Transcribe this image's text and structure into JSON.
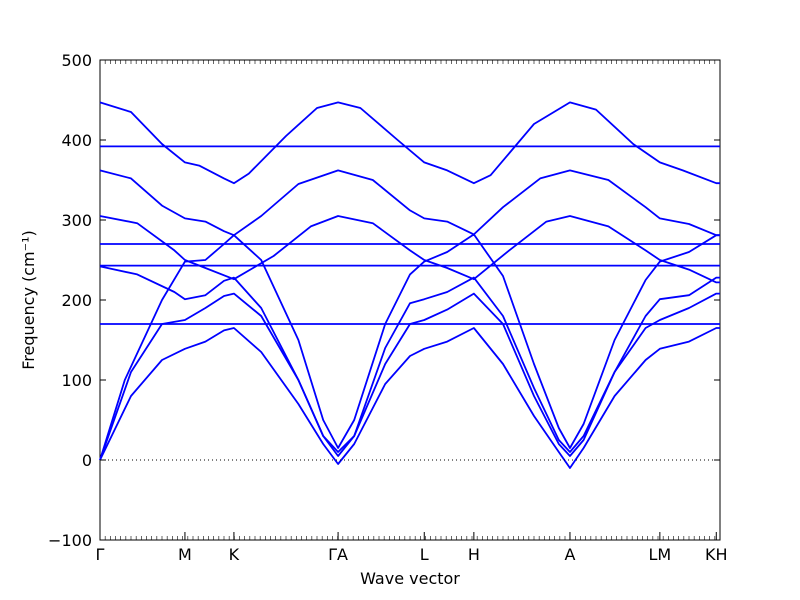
{
  "chart_data": {
    "type": "line",
    "title": "",
    "xlabel": "Wave vector",
    "ylabel": "Frequency (cm⁻¹)",
    "ylim": [
      -100,
      500
    ],
    "yticks": [
      -100,
      0,
      100,
      200,
      300,
      400,
      500
    ],
    "grid": false,
    "line_color": "#0000ff",
    "zero_line_style": "dotted",
    "high_symmetry_points": [
      {
        "label": "Γ",
        "x": 0
      },
      {
        "label": "M",
        "x": 0.137
      },
      {
        "label": "K",
        "x": 0.216
      },
      {
        "label": "ΓA",
        "x": 0.384
      },
      {
        "label": "L",
        "x": 0.523
      },
      {
        "label": "H",
        "x": 0.603
      },
      {
        "label": "A",
        "x": 0.758
      },
      {
        "label": "LM",
        "x": 0.903
      },
      {
        "label": "KH",
        "x": 0.994
      }
    ],
    "xlim": [
      0,
      1
    ],
    "series": [
      {
        "values": [
          [
            0,
            447
          ],
          [
            0.05,
            435
          ],
          [
            0.1,
            395
          ],
          [
            0.137,
            372
          ],
          [
            0.16,
            368
          ],
          [
            0.2,
            352
          ],
          [
            0.216,
            346
          ],
          [
            0.24,
            358
          ],
          [
            0.3,
            405
          ],
          [
            0.35,
            440
          ],
          [
            0.384,
            447
          ],
          [
            0.42,
            440
          ],
          [
            0.48,
            400
          ],
          [
            0.523,
            372
          ],
          [
            0.56,
            362
          ],
          [
            0.603,
            346
          ],
          [
            0.63,
            356
          ],
          [
            0.7,
            420
          ],
          [
            0.758,
            447
          ],
          [
            0.8,
            438
          ],
          [
            0.86,
            395
          ],
          [
            0.903,
            372
          ],
          [
            0.94,
            362
          ],
          [
            0.994,
            346
          ],
          [
            1,
            346
          ]
        ]
      },
      {
        "values": [
          [
            0,
            392
          ],
          [
            0.1,
            392
          ],
          [
            0.2,
            392
          ],
          [
            0.3,
            392
          ],
          [
            0.384,
            392
          ],
          [
            0.5,
            392
          ],
          [
            0.6,
            392
          ],
          [
            0.7,
            392
          ],
          [
            0.8,
            392
          ],
          [
            0.903,
            392
          ],
          [
            1,
            392
          ]
        ]
      },
      {
        "values": [
          [
            0,
            362
          ],
          [
            0.05,
            352
          ],
          [
            0.1,
            318
          ],
          [
            0.137,
            302
          ],
          [
            0.17,
            298
          ],
          [
            0.2,
            286
          ],
          [
            0.216,
            281
          ],
          [
            0.26,
            305
          ],
          [
            0.32,
            345
          ],
          [
            0.384,
            362
          ],
          [
            0.44,
            350
          ],
          [
            0.5,
            312
          ],
          [
            0.523,
            302
          ],
          [
            0.56,
            298
          ],
          [
            0.603,
            282
          ],
          [
            0.65,
            316
          ],
          [
            0.71,
            352
          ],
          [
            0.758,
            362
          ],
          [
            0.82,
            350
          ],
          [
            0.88,
            316
          ],
          [
            0.903,
            302
          ],
          [
            0.95,
            295
          ],
          [
            0.994,
            281
          ],
          [
            1,
            281
          ]
        ]
      },
      {
        "values": [
          [
            0,
            305
          ],
          [
            0.06,
            296
          ],
          [
            0.12,
            262
          ],
          [
            0.137,
            250
          ],
          [
            0.17,
            240
          ],
          [
            0.216,
            226
          ],
          [
            0.28,
            255
          ],
          [
            0.34,
            292
          ],
          [
            0.384,
            305
          ],
          [
            0.44,
            296
          ],
          [
            0.5,
            262
          ],
          [
            0.523,
            250
          ],
          [
            0.56,
            240
          ],
          [
            0.603,
            226
          ],
          [
            0.66,
            262
          ],
          [
            0.72,
            298
          ],
          [
            0.758,
            305
          ],
          [
            0.82,
            292
          ],
          [
            0.88,
            262
          ],
          [
            0.903,
            250
          ],
          [
            0.95,
            238
          ],
          [
            0.994,
            222
          ],
          [
            1,
            222
          ]
        ]
      },
      {
        "values": [
          [
            0,
            270
          ],
          [
            0.1,
            270
          ],
          [
            0.2,
            270
          ],
          [
            0.3,
            270
          ],
          [
            0.384,
            270
          ],
          [
            0.5,
            270
          ],
          [
            0.6,
            270
          ],
          [
            0.7,
            270
          ],
          [
            0.8,
            270
          ],
          [
            0.903,
            270
          ],
          [
            1,
            270
          ]
        ]
      },
      {
        "values": [
          [
            0,
            243
          ],
          [
            0.1,
            243
          ],
          [
            0.2,
            243
          ],
          [
            0.3,
            243
          ],
          [
            0.384,
            243
          ],
          [
            0.5,
            243
          ],
          [
            0.6,
            243
          ],
          [
            0.7,
            243
          ],
          [
            0.8,
            243
          ],
          [
            0.903,
            243
          ],
          [
            1,
            243
          ]
        ]
      },
      {
        "values": [
          [
            0,
            242
          ],
          [
            0.06,
            232
          ],
          [
            0.12,
            210
          ],
          [
            0.137,
            201
          ],
          [
            0.17,
            206
          ],
          [
            0.2,
            224
          ],
          [
            0.216,
            228
          ],
          [
            0.26,
            190
          ],
          [
            0.32,
            100
          ],
          [
            0.36,
            30
          ],
          [
            0.384,
            10
          ],
          [
            0.41,
            30
          ],
          [
            0.46,
            140
          ],
          [
            0.5,
            196
          ],
          [
            0.523,
            201
          ],
          [
            0.56,
            210
          ],
          [
            0.603,
            228
          ],
          [
            0.65,
            180
          ],
          [
            0.7,
            90
          ],
          [
            0.74,
            25
          ],
          [
            0.758,
            10
          ],
          [
            0.78,
            30
          ],
          [
            0.83,
            110
          ],
          [
            0.88,
            180
          ],
          [
            0.903,
            201
          ],
          [
            0.95,
            206
          ],
          [
            0.994,
            228
          ],
          [
            1,
            228
          ]
        ]
      },
      {
        "values": [
          [
            0,
            170
          ],
          [
            0.1,
            170
          ],
          [
            0.2,
            170
          ],
          [
            0.3,
            170
          ],
          [
            0.384,
            170
          ],
          [
            0.5,
            170
          ],
          [
            0.6,
            170
          ],
          [
            0.7,
            170
          ],
          [
            0.8,
            170
          ],
          [
            0.903,
            170
          ],
          [
            1,
            170
          ]
        ]
      },
      {
        "values": [
          [
            0,
            0
          ],
          [
            0.04,
            100
          ],
          [
            0.1,
            200
          ],
          [
            0.137,
            248
          ],
          [
            0.17,
            250
          ],
          [
            0.2,
            270
          ],
          [
            0.216,
            281
          ],
          [
            0.26,
            250
          ],
          [
            0.32,
            150
          ],
          [
            0.36,
            50
          ],
          [
            0.384,
            15
          ],
          [
            0.41,
            50
          ],
          [
            0.46,
            170
          ],
          [
            0.5,
            232
          ],
          [
            0.523,
            248
          ],
          [
            0.56,
            260
          ],
          [
            0.603,
            282
          ],
          [
            0.65,
            230
          ],
          [
            0.7,
            120
          ],
          [
            0.74,
            40
          ],
          [
            0.758,
            15
          ],
          [
            0.78,
            45
          ],
          [
            0.83,
            150
          ],
          [
            0.88,
            225
          ],
          [
            0.903,
            248
          ],
          [
            0.95,
            260
          ],
          [
            0.994,
            281
          ],
          [
            1,
            281
          ]
        ]
      },
      {
        "values": [
          [
            0,
            0
          ],
          [
            0.05,
            110
          ],
          [
            0.1,
            170
          ],
          [
            0.137,
            175
          ],
          [
            0.17,
            190
          ],
          [
            0.2,
            205
          ],
          [
            0.216,
            208
          ],
          [
            0.26,
            180
          ],
          [
            0.32,
            100
          ],
          [
            0.36,
            30
          ],
          [
            0.384,
            5
          ],
          [
            0.41,
            30
          ],
          [
            0.46,
            120
          ],
          [
            0.5,
            170
          ],
          [
            0.523,
            175
          ],
          [
            0.56,
            188
          ],
          [
            0.603,
            208
          ],
          [
            0.65,
            170
          ],
          [
            0.7,
            80
          ],
          [
            0.74,
            20
          ],
          [
            0.758,
            5
          ],
          [
            0.78,
            25
          ],
          [
            0.83,
            110
          ],
          [
            0.88,
            165
          ],
          [
            0.903,
            175
          ],
          [
            0.95,
            190
          ],
          [
            0.994,
            208
          ],
          [
            1,
            208
          ]
        ]
      },
      {
        "values": [
          [
            0,
            0
          ],
          [
            0.05,
            80
          ],
          [
            0.1,
            125
          ],
          [
            0.137,
            139
          ],
          [
            0.17,
            148
          ],
          [
            0.2,
            162
          ],
          [
            0.216,
            165
          ],
          [
            0.26,
            135
          ],
          [
            0.32,
            70
          ],
          [
            0.36,
            20
          ],
          [
            0.384,
            -5
          ],
          [
            0.41,
            20
          ],
          [
            0.46,
            95
          ],
          [
            0.5,
            130
          ],
          [
            0.523,
            139
          ],
          [
            0.56,
            148
          ],
          [
            0.603,
            165
          ],
          [
            0.65,
            120
          ],
          [
            0.7,
            55
          ],
          [
            0.74,
            10
          ],
          [
            0.758,
            -10
          ],
          [
            0.78,
            15
          ],
          [
            0.83,
            80
          ],
          [
            0.88,
            125
          ],
          [
            0.903,
            139
          ],
          [
            0.95,
            148
          ],
          [
            0.994,
            165
          ],
          [
            1,
            165
          ]
        ]
      }
    ]
  }
}
